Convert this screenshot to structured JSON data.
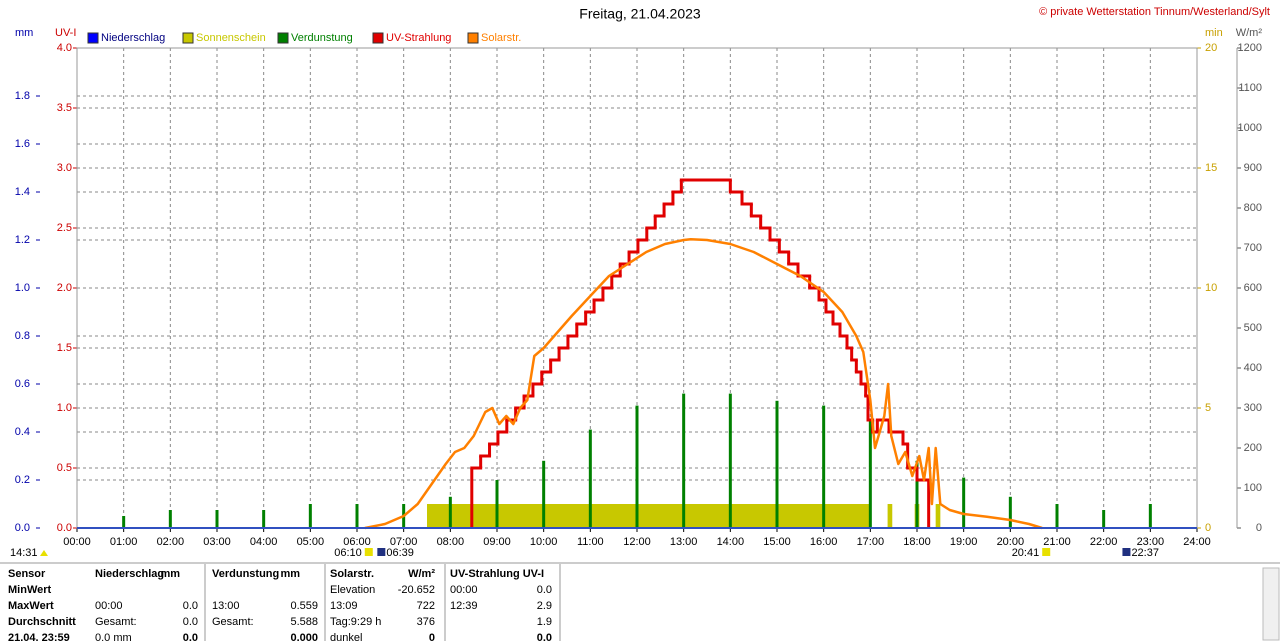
{
  "chart_data": {
    "type": "weather-day",
    "title": "Freitag, 21.04.2023",
    "copyright": "© private Wetterstation Tinnum/Westerland/Sylt",
    "xlim": [
      0,
      24
    ],
    "xticks": [
      {
        "value": 0,
        "label": "00:00"
      },
      {
        "value": 1,
        "label": "01:00"
      },
      {
        "value": 2,
        "label": "02:00"
      },
      {
        "value": 3,
        "label": "03:00"
      },
      {
        "value": 4,
        "label": "04:00"
      },
      {
        "value": 5,
        "label": "05:00"
      },
      {
        "value": 6,
        "label": "06:00"
      },
      {
        "value": 7,
        "label": "07:00"
      },
      {
        "value": 8,
        "label": "08:00"
      },
      {
        "value": 9,
        "label": "09:00"
      },
      {
        "value": 10,
        "label": "10:00"
      },
      {
        "value": 11,
        "label": "11:00"
      },
      {
        "value": 12,
        "label": "12:00"
      },
      {
        "value": 13,
        "label": "13:00"
      },
      {
        "value": 14,
        "label": "14:00"
      },
      {
        "value": 15,
        "label": "15:00"
      },
      {
        "value": 16,
        "label": "16:00"
      },
      {
        "value": 17,
        "label": "17:00"
      },
      {
        "value": 18,
        "label": "18:00"
      },
      {
        "value": 19,
        "label": "19:00"
      },
      {
        "value": 20,
        "label": "20:00"
      },
      {
        "value": 21,
        "label": "21:00"
      },
      {
        "value": 22,
        "label": "22:00"
      },
      {
        "value": 23,
        "label": "23:00"
      },
      {
        "value": 24,
        "label": "24:00"
      }
    ],
    "axes": {
      "mm": {
        "label": "mm",
        "lim": [
          0,
          2
        ],
        "color": "#0000aa",
        "ticks": [
          {
            "value": 0,
            "label": "0.0"
          },
          {
            "value": 0.2,
            "label": "0.2"
          },
          {
            "value": 0.4,
            "label": "0.4"
          },
          {
            "value": 0.6,
            "label": "0.6"
          },
          {
            "value": 0.8,
            "label": "0.8"
          },
          {
            "value": 1,
            "label": "1.0"
          },
          {
            "value": 1.2,
            "label": "1.2"
          },
          {
            "value": 1.4,
            "label": "1.4"
          },
          {
            "value": 1.6,
            "label": "1.6"
          },
          {
            "value": 1.8,
            "label": "1.8"
          }
        ]
      },
      "uv": {
        "label": "UV-I",
        "lim": [
          0,
          4
        ],
        "color": "#cc0000",
        "ticks": [
          {
            "value": 0,
            "label": "0.0"
          },
          {
            "value": 0.5,
            "label": "0.5"
          },
          {
            "value": 1,
            "label": "1.0"
          },
          {
            "value": 1.5,
            "label": "1.5"
          },
          {
            "value": 2,
            "label": "2.0"
          },
          {
            "value": 2.5,
            "label": "2.5"
          },
          {
            "value": 3,
            "label": "3.0"
          },
          {
            "value": 3.5,
            "label": "3.5"
          },
          {
            "value": 4,
            "label": "4.0"
          }
        ]
      },
      "min": {
        "label": "min",
        "lim": [
          0,
          20
        ],
        "color": "#c8a000",
        "ticks": [
          0,
          5,
          10,
          15,
          20
        ]
      },
      "wm2": {
        "label": "W/m²",
        "lim": [
          0,
          1200
        ],
        "color": "#555555",
        "ticks": [
          0,
          100,
          200,
          300,
          400,
          500,
          600,
          700,
          800,
          900,
          1000,
          1100,
          1200
        ]
      }
    },
    "grid": true,
    "series": [
      {
        "name": "Niederschlag",
        "color": "#0000ff",
        "axis": "mm"
      },
      {
        "name": "Sonnenschein",
        "color": "#c8c800",
        "axis": "min",
        "start": [
          7.5,
          17.37,
          17.95,
          18.4
        ],
        "end": [
          17.0,
          17.47,
          18.05,
          18.5
        ],
        "values": [
          1,
          1,
          1,
          1
        ]
      },
      {
        "name": "Verdunstung",
        "color": "#008000",
        "axis": "mm",
        "x": [
          1,
          2,
          3,
          4,
          5,
          6,
          7,
          8,
          9,
          10,
          11,
          12,
          13,
          14,
          15,
          16,
          17,
          18,
          19,
          20,
          21,
          22,
          23
        ],
        "values": [
          0.05,
          0.075,
          0.075,
          0.075,
          0.1,
          0.1,
          0.1,
          0.13,
          0.2,
          0.28,
          0.41,
          0.51,
          0.56,
          0.56,
          0.53,
          0.51,
          0.45,
          0.28,
          0.21,
          0.13,
          0.1,
          0.075,
          0.1
        ]
      },
      {
        "name": "UV-Strahlung",
        "color": "#e00000",
        "axis": "uv",
        "x": [
          8.46,
          8.65,
          8.84,
          9.02,
          9.21,
          9.4,
          9.58,
          9.77,
          9.96,
          10.15,
          10.33,
          10.52,
          10.71,
          10.9,
          11.08,
          11.27,
          11.46,
          11.64,
          11.83,
          12.02,
          12.21,
          12.39,
          12.58,
          12.77,
          12.95,
          14.0,
          14.25,
          14.45,
          14.65,
          14.85,
          15.05,
          15.25,
          15.45,
          15.7,
          15.9,
          16.05,
          16.2,
          16.35,
          16.5,
          16.6,
          16.7,
          16.8,
          16.9,
          16.95,
          17.05,
          17.15,
          17.4,
          17.7,
          17.8,
          18.0,
          18.25
        ],
        "values": [
          0.5,
          0.6,
          0.7,
          0.8,
          0.9,
          1.0,
          1.1,
          1.2,
          1.3,
          1.4,
          1.5,
          1.6,
          1.7,
          1.8,
          1.9,
          2.0,
          2.1,
          2.2,
          2.3,
          2.4,
          2.5,
          2.6,
          2.7,
          2.8,
          2.9,
          2.8,
          2.7,
          2.6,
          2.5,
          2.4,
          2.3,
          2.2,
          2.1,
          2.0,
          1.9,
          1.8,
          1.7,
          1.6,
          1.5,
          1.4,
          1.3,
          1.2,
          1.1,
          0.9,
          0.8,
          0.9,
          0.8,
          0.7,
          0.5,
          0.4,
          0
        ]
      },
      {
        "name": "Solarstr.",
        "color": "#ff8000",
        "axis": "wm2",
        "x": [
          6.17,
          6.6,
          7.0,
          7.3,
          7.6,
          7.9,
          8.1,
          8.3,
          8.5,
          8.75,
          8.9,
          9.05,
          9.2,
          9.35,
          9.5,
          9.65,
          9.8,
          10.0,
          10.3,
          10.6,
          11.0,
          11.4,
          11.8,
          12.2,
          12.6,
          13.0,
          13.15,
          13.5,
          14.0,
          14.5,
          15.0,
          15.5,
          16.0,
          16.4,
          16.7,
          16.85,
          17.0,
          17.1,
          17.2,
          17.3,
          17.38,
          17.45,
          17.6,
          17.75,
          17.9,
          18.05,
          18.15,
          18.25,
          18.32,
          18.4,
          18.5,
          18.7,
          19.0,
          19.5,
          20.0,
          20.4,
          20.68
        ],
        "values": [
          0,
          10,
          30,
          60,
          110,
          160,
          190,
          200,
          230,
          290,
          300,
          260,
          280,
          260,
          300,
          320,
          430,
          450,
          490,
          530,
          580,
          630,
          660,
          690,
          710,
          720,
          722,
          720,
          710,
          690,
          660,
          630,
          590,
          540,
          480,
          440,
          320,
          200,
          240,
          280,
          360,
          230,
          160,
          190,
          130,
          180,
          120,
          200,
          60,
          200,
          60,
          45,
          35,
          28,
          20,
          10,
          0
        ]
      }
    ],
    "day_length": "14:31",
    "markers": [
      "06:10",
      "06:39",
      "20:41",
      "22:37"
    ],
    "table": [
      {
        "label": "Sensor",
        "p_label": "Niederschlag",
        "p_val": "mm",
        "e_label": "Verdunstung",
        "e_val": "mm",
        "s_label": "Solarstr.",
        "s_val": "W/m²",
        "u_label": "UV-Strahlung UV-I"
      },
      {
        "label": "MinWert",
        "s_label": "Elevation",
        "s_val": "-20.652",
        "u_label": "00:00",
        "u_val": "0.0"
      },
      {
        "label": "MaxWert",
        "p_label": "00:00",
        "p_val": "0.0",
        "e_label": "13:00",
        "e_val": "0.559",
        "s_label": "13:09",
        "s_val": "722",
        "u_label": "12:39",
        "u_val": "2.9"
      },
      {
        "label": "Durchschnitt",
        "p_label": "Gesamt:",
        "p_val": "0.0",
        "e_label": "Gesamt:",
        "e_val": "5.588",
        "s_label": "Tag:9:29 h",
        "s_val": "376",
        "u_val": "1.9"
      },
      {
        "label": "21.04. 23:59",
        "p_label": "0.0 mm",
        "p_val": "0.0",
        "e_val": "0.000",
        "s_label": "dunkel",
        "s_val": "0",
        "u_val": "0.0"
      }
    ]
  }
}
